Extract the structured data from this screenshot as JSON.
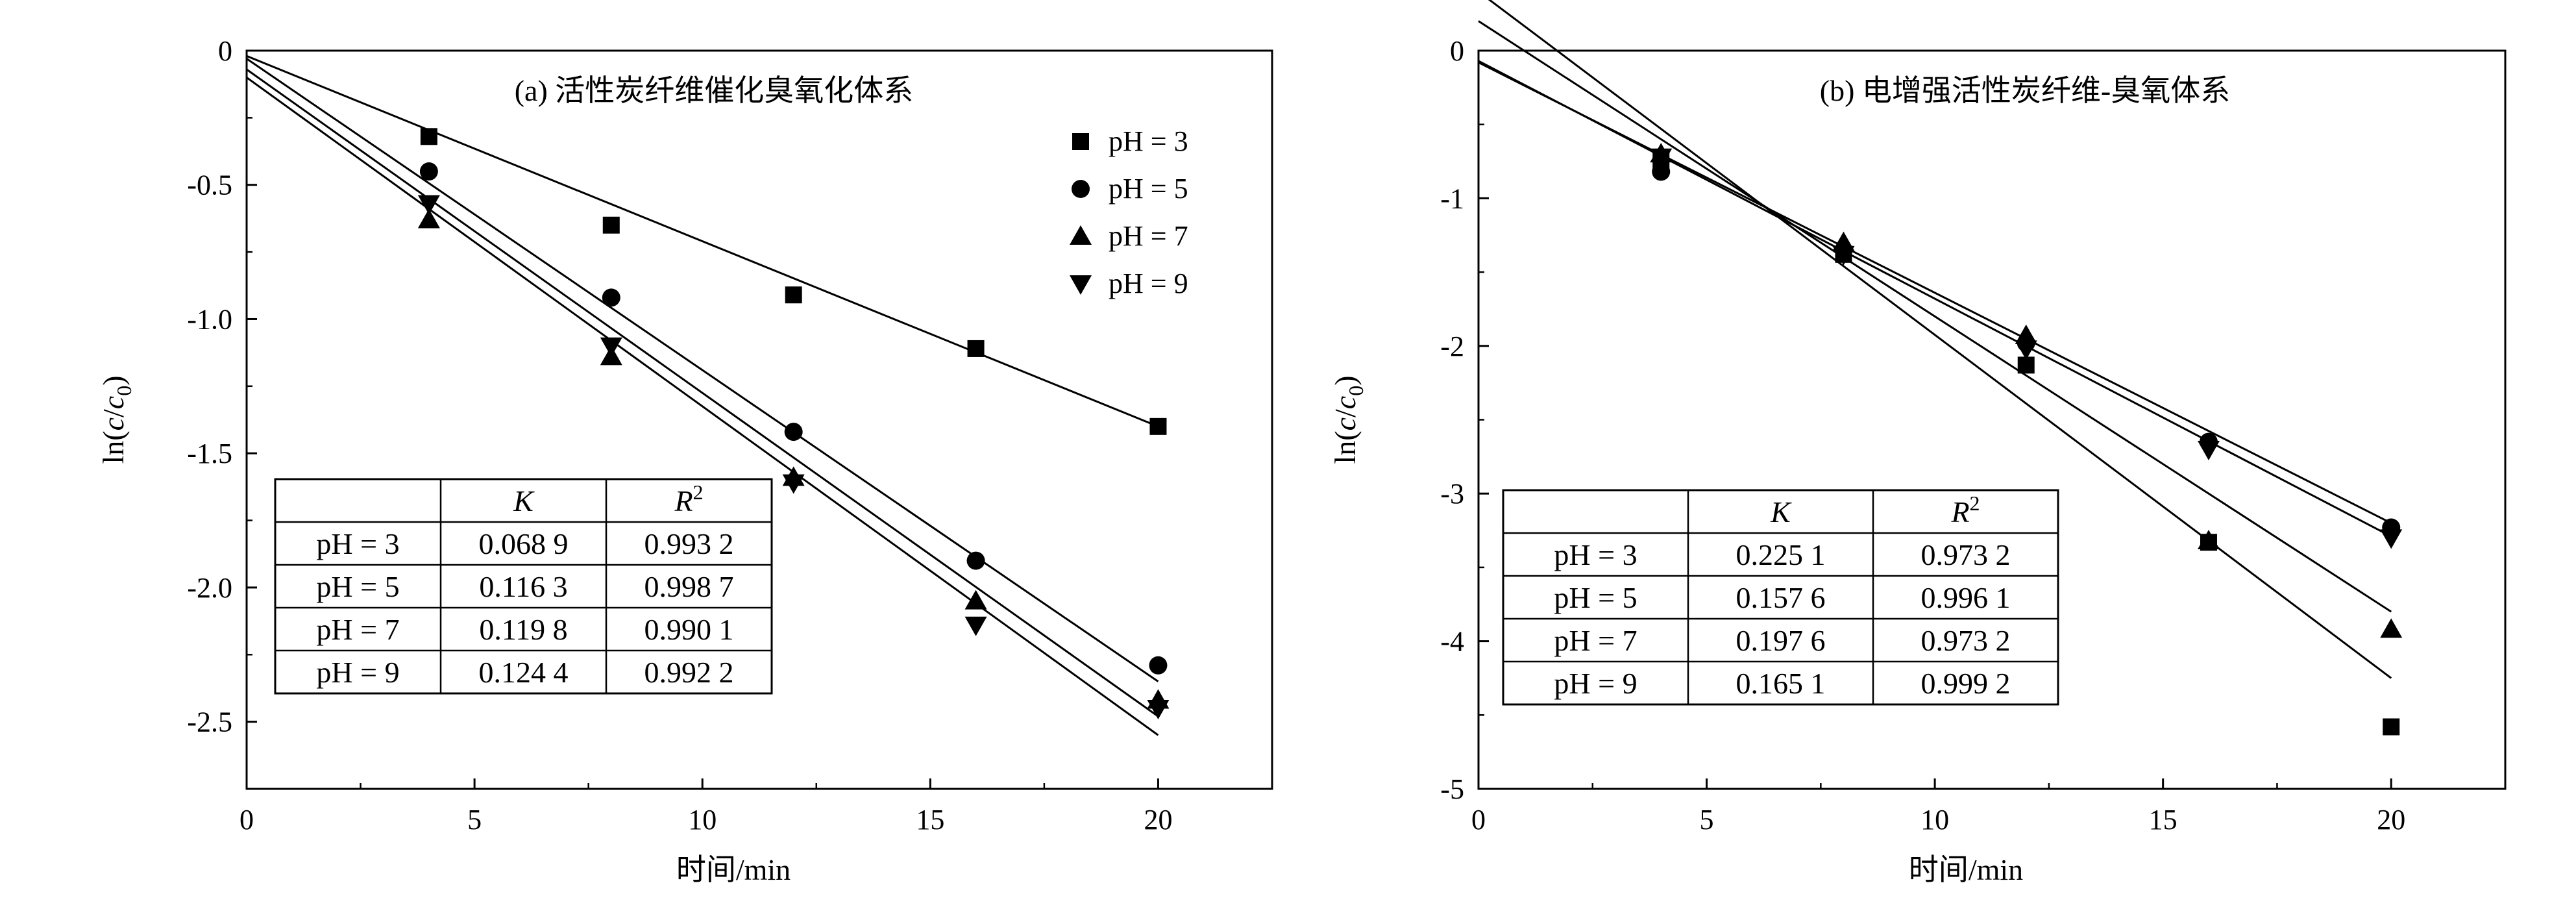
{
  "chart_data": [
    {
      "type": "scatter",
      "title": "(a)  活性炭纤维催化臭氧化体系",
      "xlabel": "时间/min",
      "ylabel_parts": [
        "ln(",
        "c",
        "/",
        "c",
        "0",
        ")"
      ],
      "xlim": [
        0,
        22.5
      ],
      "ylim": [
        -2.75,
        0
      ],
      "xticks": [
        0,
        5,
        10,
        15,
        20
      ],
      "xtick_labels": [
        "0",
        "5",
        "10",
        "15",
        "20"
      ],
      "yticks": [
        0,
        -0.5,
        -1.0,
        -1.5,
        -2.0,
        -2.5
      ],
      "ytick_labels": [
        "0",
        "-0.5",
        "-1.0",
        "-1.5",
        "-2.0",
        "-2.5"
      ],
      "legend_position": "top-right",
      "series": [
        {
          "name": "pH = 3",
          "marker": "square",
          "x": [
            4,
            8,
            12,
            16,
            20
          ],
          "y": [
            -0.32,
            -0.65,
            -0.91,
            -1.11,
            -1.4
          ],
          "fit": [
            [
              0,
              -0.02
            ],
            [
              20,
              -1.4
            ]
          ]
        },
        {
          "name": "pH = 5",
          "marker": "circle",
          "x": [
            4,
            8,
            12,
            16,
            20
          ],
          "y": [
            -0.45,
            -0.92,
            -1.42,
            -1.9,
            -2.29
          ],
          "fit": [
            [
              0,
              -0.03
            ],
            [
              20,
              -2.35
            ]
          ]
        },
        {
          "name": "pH = 7",
          "marker": "triangle-up",
          "x": [
            4,
            8,
            12,
            16,
            20
          ],
          "y": [
            -0.63,
            -1.14,
            -1.59,
            -2.05,
            -2.42
          ],
          "fit": [
            [
              0,
              -0.07
            ],
            [
              20,
              -2.48
            ]
          ]
        },
        {
          "name": "pH = 9",
          "marker": "triangle-down",
          "x": [
            4,
            8,
            12,
            16,
            20
          ],
          "y": [
            -0.57,
            -1.1,
            -1.61,
            -2.14,
            -2.45
          ],
          "fit": [
            [
              0,
              -0.1
            ],
            [
              20,
              -2.55
            ]
          ]
        }
      ],
      "table": {
        "headers": [
          "",
          "K",
          "R2"
        ],
        "rows": [
          [
            "pH = 3",
            "0.068 9",
            "0.993 2"
          ],
          [
            "pH = 5",
            "0.116 3",
            "0.998 7"
          ],
          [
            "pH = 7",
            "0.119 8",
            "0.990 1"
          ],
          [
            "pH = 9",
            "0.124 4",
            "0.992 2"
          ]
        ]
      }
    },
    {
      "type": "scatter",
      "title": "(b)  电增强活性炭纤维-臭氧体系",
      "xlabel": "时间/min",
      "ylabel_parts": [
        "ln(",
        "c",
        "/",
        "c",
        "0",
        ")"
      ],
      "xlim": [
        0,
        22.5
      ],
      "ylim": [
        -5,
        0
      ],
      "xticks": [
        0,
        5,
        10,
        15,
        20
      ],
      "xtick_labels": [
        "0",
        "5",
        "10",
        "15",
        "20"
      ],
      "yticks": [
        0,
        -1,
        -2,
        -3,
        -4,
        -5
      ],
      "ytick_labels": [
        "0",
        "-1",
        "-2",
        "-3",
        "-4",
        "-5"
      ],
      "series": [
        {
          "name": "pH = 3",
          "marker": "square",
          "x": [
            4,
            8,
            12,
            16,
            20
          ],
          "y": [
            -0.75,
            -1.38,
            -2.13,
            -3.33,
            -4.58
          ],
          "fit": [
            [
              0,
              0.4
            ],
            [
              20,
              -4.25
            ]
          ]
        },
        {
          "name": "pH = 5",
          "marker": "circle",
          "x": [
            4,
            8,
            12,
            16,
            20
          ],
          "y": [
            -0.82,
            -1.35,
            -1.98,
            -2.65,
            -3.23
          ],
          "fit": [
            [
              0,
              -0.08
            ],
            [
              20,
              -3.2
            ]
          ]
        },
        {
          "name": "pH = 7",
          "marker": "triangle-up",
          "x": [
            4,
            8,
            12,
            16,
            20
          ],
          "y": [
            -0.7,
            -1.3,
            -1.93,
            -3.32,
            -3.92
          ],
          "fit": [
            [
              0,
              0.2
            ],
            [
              20,
              -3.8
            ]
          ]
        },
        {
          "name": "pH = 9",
          "marker": "triangle-down",
          "x": [
            4,
            8,
            12,
            16,
            20
          ],
          "y": [
            -0.72,
            -1.38,
            -2.02,
            -2.7,
            -3.3
          ],
          "fit": [
            [
              0,
              -0.07
            ],
            [
              20,
              -3.29
            ]
          ]
        }
      ],
      "table": {
        "headers": [
          "",
          "K",
          "R2"
        ],
        "rows": [
          [
            "pH = 3",
            "0.225 1",
            "0.973 2"
          ],
          [
            "pH = 5",
            "0.157 6",
            "0.996 1"
          ],
          [
            "pH = 7",
            "0.197 6",
            "0.973 2"
          ],
          [
            "pH = 9",
            "0.165 1",
            "0.999 2"
          ]
        ]
      }
    }
  ]
}
